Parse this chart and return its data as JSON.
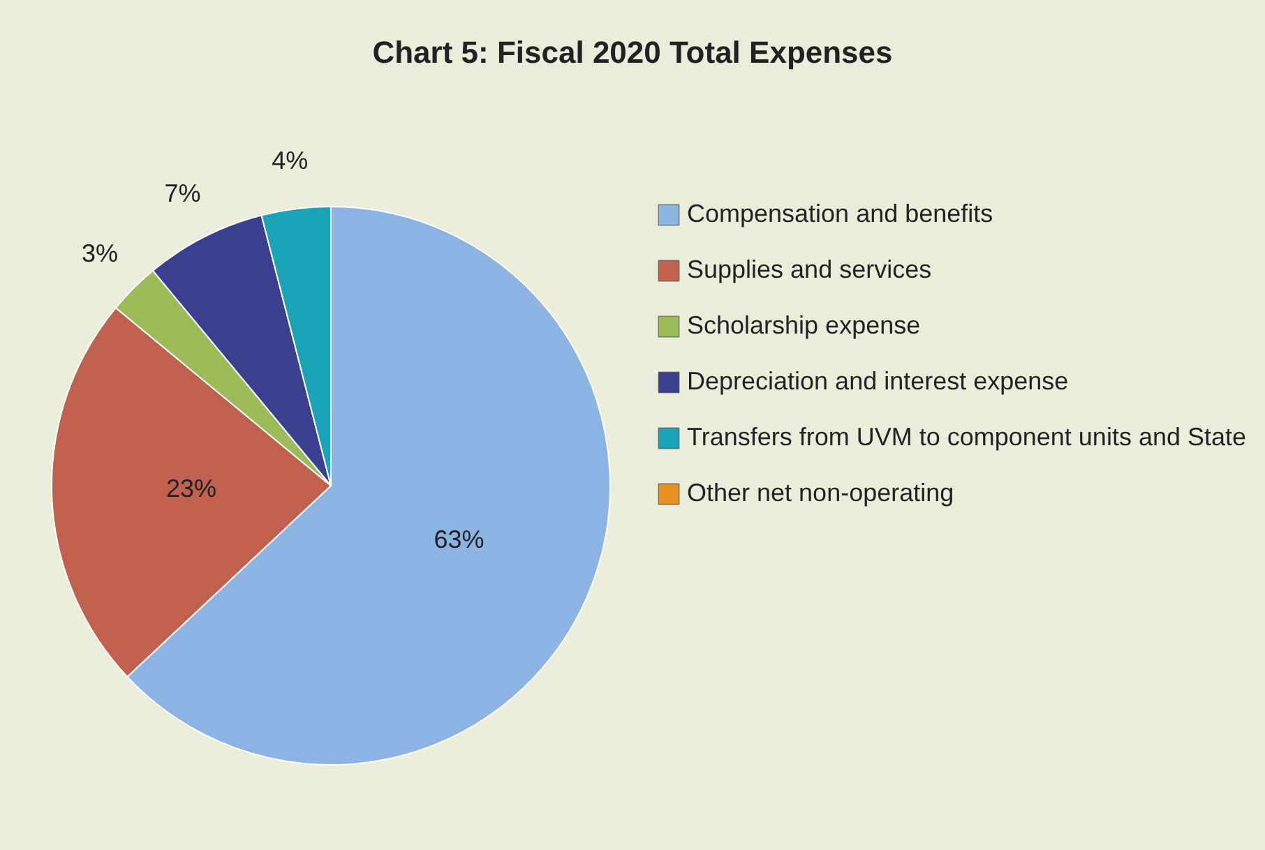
{
  "chart_data": {
    "type": "pie",
    "title": "Chart 5: Fiscal 2020 Total Expenses",
    "categories": [
      "Compensation and benefits",
      "Supplies and services",
      "Scholarship expense",
      "Depreciation and interest expense",
      "Transfers from UVM to component units and State",
      "Other net non-operating"
    ],
    "values": [
      63,
      23,
      3,
      7,
      4,
      0
    ],
    "colors": [
      "#8db3e2",
      "#c0604f",
      "#9bbb59",
      "#3b3f8f",
      "#1aa3b8",
      "#e8901e"
    ],
    "value_labels": [
      "63%",
      "23%",
      "3%",
      "7%",
      "4%",
      null
    ],
    "legend": "right"
  }
}
